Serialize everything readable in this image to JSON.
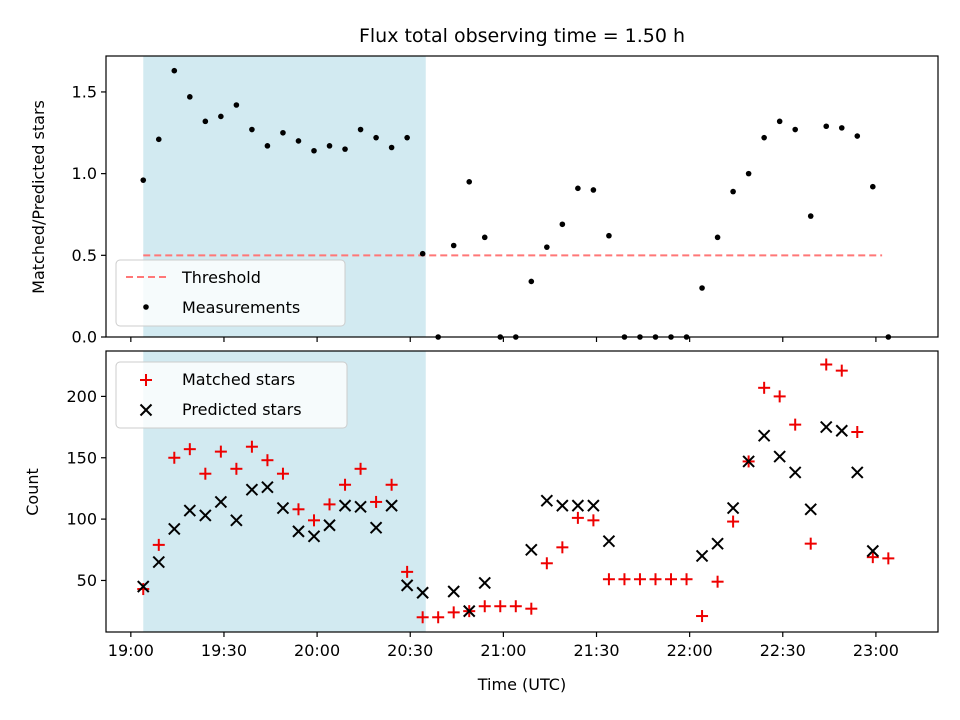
{
  "figure": {
    "title": "Flux total observing time = 1.50 h",
    "xlabel": "Time (UTC)"
  },
  "colors": {
    "threshold": "#ff7777",
    "measurements": "#000000",
    "matched": "#ee0000",
    "predicted": "#000000",
    "shaded_region": "#add8e6"
  },
  "chart_data": [
    {
      "type": "scatter",
      "title": "Flux total observing time = 1.50 h",
      "ylabel": "Matched/Predicted stars",
      "ylim": [
        0,
        1.72
      ],
      "yticks": [
        0.0,
        0.5,
        1.0,
        1.5
      ],
      "ytick_labels": [
        "0.0",
        "0.5",
        "1.0",
        "1.5"
      ],
      "xlim": [
        "18:52",
        "23:20"
      ],
      "xticks": [
        "19:00",
        "19:30",
        "20:00",
        "20:30",
        "21:00",
        "21:30",
        "22:00",
        "22:30",
        "23:00"
      ],
      "grid": false,
      "legend_position": "lower-left",
      "shaded_region": {
        "start": "19:04",
        "end": "20:35"
      },
      "series": [
        {
          "name": "Threshold",
          "kind": "dashed-line",
          "x": [
            "19:04",
            "23:02"
          ],
          "y": [
            0.5,
            0.5
          ]
        },
        {
          "name": "Measurements",
          "kind": "points",
          "x": [
            "19:04",
            "19:09",
            "19:14",
            "19:19",
            "19:24",
            "19:29",
            "19:34",
            "19:39",
            "19:44",
            "19:49",
            "19:54",
            "19:59",
            "20:04",
            "20:09",
            "20:14",
            "20:19",
            "20:24",
            "20:29",
            "20:34",
            "20:39",
            "20:44",
            "20:49",
            "20:54",
            "20:59",
            "21:04",
            "21:09",
            "21:14",
            "21:19",
            "21:24",
            "21:29",
            "21:34",
            "21:39",
            "21:44",
            "21:49",
            "21:54",
            "21:59",
            "22:04",
            "22:09",
            "22:14",
            "22:19",
            "22:24",
            "22:29",
            "22:34",
            "22:39",
            "22:44",
            "22:49",
            "22:54",
            "22:59",
            "23:04"
          ],
          "y": [
            0.96,
            1.21,
            1.63,
            1.47,
            1.32,
            1.35,
            1.42,
            1.27,
            1.17,
            1.25,
            1.2,
            1.14,
            1.17,
            1.15,
            1.27,
            1.22,
            1.16,
            1.22,
            0.51,
            0.0,
            0.56,
            0.95,
            0.61,
            0.0,
            0.0,
            0.34,
            0.55,
            0.69,
            0.91,
            0.9,
            0.62,
            0.0,
            0.0,
            0.0,
            0.0,
            0.0,
            0.3,
            0.61,
            0.89,
            1.0,
            1.22,
            1.32,
            1.27,
            0.74,
            1.29,
            1.28,
            1.23,
            0.92,
            0.0
          ]
        }
      ]
    },
    {
      "type": "scatter",
      "ylabel": "Count",
      "xlabel": "Time (UTC)",
      "ylim": [
        8,
        237
      ],
      "yticks": [
        50,
        100,
        150,
        200
      ],
      "ytick_labels": [
        "50",
        "100",
        "150",
        "200"
      ],
      "xlim": [
        "18:52",
        "23:20"
      ],
      "xticks": [
        "19:00",
        "19:30",
        "20:00",
        "20:30",
        "21:00",
        "21:30",
        "22:00",
        "22:30",
        "23:00"
      ],
      "xtick_labels": [
        "19:00",
        "19:30",
        "20:00",
        "20:30",
        "21:00",
        "21:30",
        "22:00",
        "22:30",
        "23:00"
      ],
      "grid": false,
      "legend_position": "upper-left",
      "shaded_region": {
        "start": "19:04",
        "end": "20:35"
      },
      "series": [
        {
          "name": "Matched stars",
          "kind": "plus",
          "x": [
            "19:04",
            "19:09",
            "19:14",
            "19:19",
            "19:24",
            "19:29",
            "19:34",
            "19:39",
            "19:44",
            "19:49",
            "19:54",
            "19:59",
            "20:04",
            "20:09",
            "20:14",
            "20:19",
            "20:24",
            "20:29",
            "20:34",
            "20:39",
            "20:44",
            "20:49",
            "20:54",
            "20:59",
            "21:04",
            "21:09",
            "21:14",
            "21:19",
            "21:24",
            "21:29",
            "21:34",
            "21:39",
            "21:44",
            "21:49",
            "21:54",
            "21:59",
            "22:04",
            "22:09",
            "22:14",
            "22:19",
            "22:24",
            "22:29",
            "22:34",
            "22:39",
            "22:44",
            "22:49",
            "22:54",
            "22:59",
            "23:04"
          ],
          "y": [
            43,
            79,
            150,
            157,
            137,
            155,
            141,
            159,
            148,
            137,
            108,
            99,
            112,
            128,
            141,
            114,
            128,
            57,
            20,
            20,
            24,
            25,
            29,
            29,
            29,
            27,
            64,
            77,
            101,
            99,
            51,
            51,
            51,
            51,
            51,
            51,
            21,
            49,
            98,
            147,
            207,
            200,
            177,
            80,
            226,
            221,
            171,
            69,
            68
          ]
        },
        {
          "name": "Predicted stars",
          "kind": "cross",
          "x": [
            "19:04",
            "19:09",
            "19:14",
            "19:19",
            "19:24",
            "19:29",
            "19:34",
            "19:39",
            "19:44",
            "19:49",
            "19:54",
            "19:59",
            "20:04",
            "20:09",
            "20:14",
            "20:19",
            "20:24",
            "20:29",
            "20:34",
            "20:44",
            "20:49",
            "20:54",
            "21:09",
            "21:14",
            "21:19",
            "21:24",
            "21:29",
            "21:34",
            "22:04",
            "22:09",
            "22:14",
            "22:19",
            "22:24",
            "22:29",
            "22:34",
            "22:39",
            "22:44",
            "22:49",
            "22:54",
            "22:59"
          ],
          "y": [
            45,
            65,
            92,
            107,
            103,
            114,
            99,
            124,
            126,
            109,
            90,
            86,
            95,
            111,
            110,
            93,
            111,
            46,
            40,
            41,
            25,
            48,
            75,
            115,
            111,
            111,
            111,
            82,
            70,
            80,
            109,
            147,
            168,
            151,
            138,
            108,
            175,
            172,
            138,
            74
          ]
        }
      ]
    }
  ]
}
